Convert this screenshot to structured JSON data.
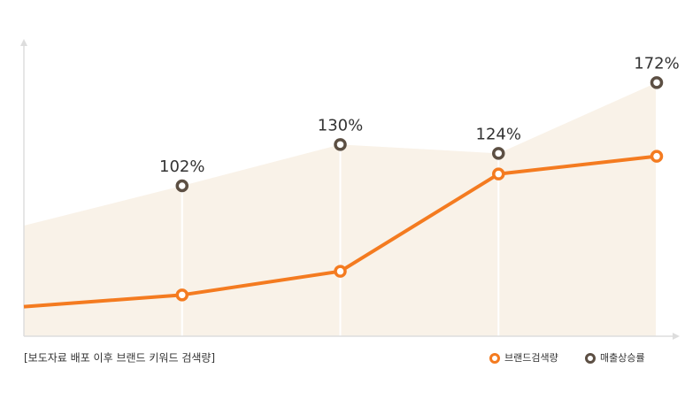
{
  "chart_data": {
    "type": "line",
    "caption": "[보도자료 배포 이후 브랜드 키워드 검색량]",
    "categories": [
      null,
      null,
      null,
      null,
      null
    ],
    "ylim": [
      0,
      180
    ],
    "series": [
      {
        "name": "브랜드검색량",
        "color": "#f47b20",
        "values": [
          20,
          28,
          44,
          110,
          122
        ]
      },
      {
        "name": "매출상승률",
        "color": "#5c4f43",
        "area_color": "#f9f2e8",
        "values": [
          75,
          102,
          130,
          124,
          172
        ],
        "value_labels": [
          null,
          "102%",
          "130%",
          "124%",
          "172%"
        ]
      }
    ]
  }
}
